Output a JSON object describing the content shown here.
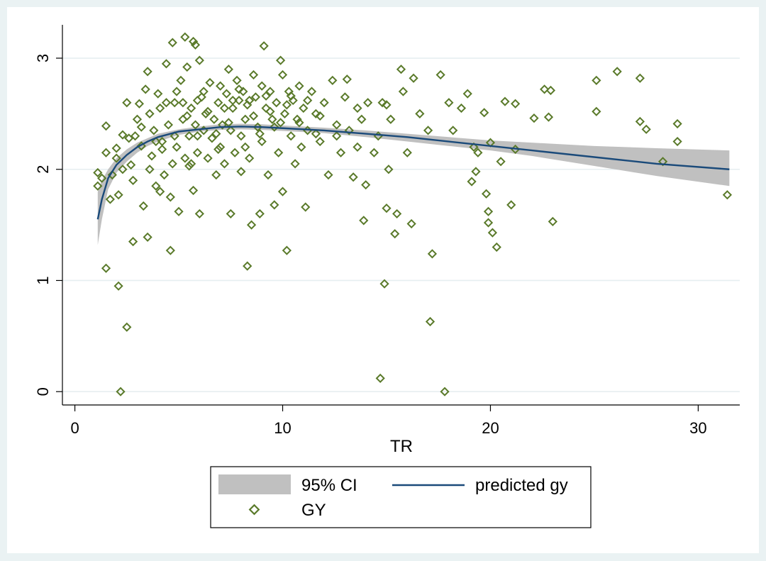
{
  "chart_data": {
    "type": "scatter",
    "xlabel": "TR",
    "ylabel": "",
    "xlim": [
      -0.6,
      32.0
    ],
    "ylim": [
      -0.12,
      3.3
    ],
    "xticks": [
      {
        "value": 0,
        "label": "0"
      },
      {
        "value": 10,
        "label": "10"
      },
      {
        "value": 20,
        "label": "20"
      },
      {
        "value": 30,
        "label": "30"
      }
    ],
    "yticks": [
      {
        "value": 0,
        "label": "0"
      },
      {
        "value": 1,
        "label": "1"
      },
      {
        "value": 2,
        "label": "2"
      },
      {
        "value": 3,
        "label": "3"
      }
    ],
    "grid": "horizontal",
    "legend": {
      "position": "bottom",
      "entries": [
        {
          "key": "ci",
          "label": "95% CI"
        },
        {
          "key": "fit",
          "label": "predicted gy"
        },
        {
          "key": "gy",
          "label": "GY"
        }
      ]
    },
    "colors": {
      "background": "#eaf2f3",
      "plot": "#ffffff",
      "marker": "#5a7a2a",
      "line": "#1a4a7a",
      "ci": "#c0c0c0",
      "grid": "#e6eef0"
    },
    "series": [
      {
        "name": "predicted gy",
        "kind": "line",
        "points": [
          [
            1.1,
            1.55
          ],
          [
            1.3,
            1.73
          ],
          [
            1.6,
            1.92
          ],
          [
            2,
            2.04
          ],
          [
            2.5,
            2.13
          ],
          [
            3,
            2.2
          ],
          [
            3.5,
            2.25
          ],
          [
            4,
            2.29
          ],
          [
            5,
            2.34
          ],
          [
            6,
            2.36
          ],
          [
            7,
            2.38
          ],
          [
            8,
            2.385
          ],
          [
            9,
            2.38
          ],
          [
            10,
            2.37
          ],
          [
            12,
            2.35
          ],
          [
            14,
            2.32
          ],
          [
            16,
            2.29
          ],
          [
            18,
            2.25
          ],
          [
            20,
            2.21
          ],
          [
            22,
            2.17
          ],
          [
            25,
            2.11
          ],
          [
            28,
            2.05
          ],
          [
            31.5,
            2.0
          ]
        ]
      },
      {
        "name": "95% CI",
        "kind": "band",
        "upper": [
          [
            1.1,
            1.8
          ],
          [
            1.3,
            1.9
          ],
          [
            1.6,
            2.0
          ],
          [
            2,
            2.1
          ],
          [
            2.5,
            2.18
          ],
          [
            3,
            2.24
          ],
          [
            3.5,
            2.28
          ],
          [
            4,
            2.32
          ],
          [
            5,
            2.36
          ],
          [
            6,
            2.385
          ],
          [
            7,
            2.405
          ],
          [
            8,
            2.41
          ],
          [
            9,
            2.405
          ],
          [
            10,
            2.395
          ],
          [
            12,
            2.375
          ],
          [
            14,
            2.35
          ],
          [
            16,
            2.32
          ],
          [
            18,
            2.29
          ],
          [
            20,
            2.26
          ],
          [
            22,
            2.24
          ],
          [
            25,
            2.21
          ],
          [
            28,
            2.19
          ],
          [
            31.5,
            2.17
          ]
        ],
        "lower": [
          [
            1.1,
            1.32
          ],
          [
            1.3,
            1.55
          ],
          [
            1.6,
            1.82
          ],
          [
            2,
            1.97
          ],
          [
            2.5,
            2.07
          ],
          [
            3,
            2.15
          ],
          [
            3.5,
            2.21
          ],
          [
            4,
            2.25
          ],
          [
            5,
            2.31
          ],
          [
            6,
            2.34
          ],
          [
            7,
            2.355
          ],
          [
            8,
            2.36
          ],
          [
            9,
            2.355
          ],
          [
            10,
            2.345
          ],
          [
            12,
            2.325
          ],
          [
            14,
            2.29
          ],
          [
            16,
            2.25
          ],
          [
            18,
            2.21
          ],
          [
            20,
            2.17
          ],
          [
            22,
            2.12
          ],
          [
            25,
            2.03
          ],
          [
            28,
            1.94
          ],
          [
            31.5,
            1.85
          ]
        ]
      },
      {
        "name": "GY",
        "kind": "scatter",
        "points": [
          [
            1.1,
            1.97
          ],
          [
            1.1,
            1.85
          ],
          [
            1.3,
            1.92
          ],
          [
            1.5,
            2.39
          ],
          [
            1.5,
            1.11
          ],
          [
            1.5,
            2.15
          ],
          [
            1.7,
            1.73
          ],
          [
            1.8,
            1.95
          ],
          [
            2,
            2.19
          ],
          [
            2.1,
            0.95
          ],
          [
            2.1,
            1.77
          ],
          [
            2.2,
            0.0
          ],
          [
            2.3,
            2.31
          ],
          [
            2.3,
            2.0
          ],
          [
            2.5,
            0.58
          ],
          [
            2.5,
            2.6
          ],
          [
            2.7,
            2.04
          ],
          [
            2.8,
            1.35
          ],
          [
            2.8,
            1.9
          ],
          [
            2.9,
            2.3
          ],
          [
            3.0,
            2.45
          ],
          [
            3.1,
            2.59
          ],
          [
            3.2,
            2.21
          ],
          [
            3.3,
            1.67
          ],
          [
            3.4,
            2.72
          ],
          [
            3.5,
            2.88
          ],
          [
            3.5,
            1.39
          ],
          [
            3.6,
            2.0
          ],
          [
            3.7,
            2.12
          ],
          [
            3.8,
            2.35
          ],
          [
            3.9,
            1.85
          ],
          [
            4.0,
            2.68
          ],
          [
            4.1,
            2.55
          ],
          [
            4.1,
            1.8
          ],
          [
            4.2,
            2.25
          ],
          [
            4.3,
            1.95
          ],
          [
            4.4,
            2.95
          ],
          [
            4.5,
            2.4
          ],
          [
            4.6,
            1.75
          ],
          [
            4.6,
            1.27
          ],
          [
            4.7,
            2.05
          ],
          [
            4.7,
            3.14
          ],
          [
            4.8,
            2.6
          ],
          [
            4.9,
            2.2
          ],
          [
            5.0,
            1.62
          ],
          [
            5.1,
            2.8
          ],
          [
            5.2,
            2.45
          ],
          [
            5.3,
            3.19
          ],
          [
            5.3,
            2.1
          ],
          [
            5.4,
            2.92
          ],
          [
            5.5,
            2.3
          ],
          [
            5.5,
            2.03
          ],
          [
            5.6,
            2.55
          ],
          [
            5.7,
            1.81
          ],
          [
            5.7,
            3.15
          ],
          [
            5.8,
            3.12
          ],
          [
            5.8,
            2.4
          ],
          [
            5.9,
            2.15
          ],
          [
            6.0,
            2.98
          ],
          [
            6.0,
            1.6
          ],
          [
            6.1,
            2.65
          ],
          [
            6.2,
            2.35
          ],
          [
            6.3,
            2.5
          ],
          [
            6.4,
            2.1
          ],
          [
            6.5,
            2.78
          ],
          [
            6.6,
            2.28
          ],
          [
            6.7,
            2.45
          ],
          [
            6.8,
            1.95
          ],
          [
            6.9,
            2.6
          ],
          [
            7.0,
            2.75
          ],
          [
            7.0,
            2.2
          ],
          [
            7.1,
            2.4
          ],
          [
            7.2,
            2.05
          ],
          [
            7.3,
            2.68
          ],
          [
            7.4,
            2.9
          ],
          [
            7.5,
            1.6
          ],
          [
            7.5,
            2.35
          ],
          [
            7.6,
            2.55
          ],
          [
            7.7,
            2.15
          ],
          [
            7.8,
            2.8
          ],
          [
            7.9,
            2.62
          ],
          [
            8.0,
            2.3
          ],
          [
            8.0,
            1.98
          ],
          [
            8.1,
            2.7
          ],
          [
            8.2,
            2.45
          ],
          [
            8.3,
            1.13
          ],
          [
            8.3,
            2.58
          ],
          [
            8.4,
            2.1
          ],
          [
            8.5,
            1.5
          ],
          [
            8.6,
            2.85
          ],
          [
            8.7,
            2.65
          ],
          [
            8.8,
            2.38
          ],
          [
            8.9,
            1.6
          ],
          [
            9.0,
            2.75
          ],
          [
            9.0,
            2.25
          ],
          [
            9.1,
            3.11
          ],
          [
            9.2,
            2.55
          ],
          [
            9.3,
            1.95
          ],
          [
            9.4,
            2.7
          ],
          [
            9.5,
            2.45
          ],
          [
            9.6,
            1.68
          ],
          [
            9.7,
            2.6
          ],
          [
            9.8,
            2.15
          ],
          [
            9.9,
            2.98
          ],
          [
            10.0,
            2.85
          ],
          [
            10.0,
            1.8
          ],
          [
            10.1,
            2.5
          ],
          [
            10.2,
            1.27
          ],
          [
            10.3,
            2.7
          ],
          [
            10.4,
            2.3
          ],
          [
            10.5,
            2.62
          ],
          [
            10.6,
            2.05
          ],
          [
            10.7,
            2.45
          ],
          [
            10.8,
            2.75
          ],
          [
            10.9,
            2.2
          ],
          [
            11.0,
            2.55
          ],
          [
            11.1,
            1.66
          ],
          [
            11.2,
            2.35
          ],
          [
            11.4,
            2.7
          ],
          [
            11.6,
            2.5
          ],
          [
            11.8,
            2.25
          ],
          [
            12.0,
            2.6
          ],
          [
            12.2,
            1.95
          ],
          [
            12.4,
            2.8
          ],
          [
            12.6,
            2.4
          ],
          [
            12.8,
            2.15
          ],
          [
            13.0,
            2.65
          ],
          [
            13.1,
            2.81
          ],
          [
            13.2,
            2.35
          ],
          [
            13.4,
            1.93
          ],
          [
            13.6,
            2.55
          ],
          [
            13.8,
            2.45
          ],
          [
            13.9,
            1.54
          ],
          [
            14.0,
            1.86
          ],
          [
            14.1,
            2.6
          ],
          [
            14.4,
            2.15
          ],
          [
            14.7,
            0.12
          ],
          [
            14.8,
            2.6
          ],
          [
            14.9,
            0.97
          ],
          [
            15.0,
            1.65
          ],
          [
            15.1,
            2.0
          ],
          [
            15.2,
            2.45
          ],
          [
            15.4,
            1.42
          ],
          [
            15.5,
            1.6
          ],
          [
            15.7,
            2.9
          ],
          [
            15.8,
            2.7
          ],
          [
            16.0,
            2.15
          ],
          [
            16.2,
            1.51
          ],
          [
            16.3,
            2.82
          ],
          [
            16.6,
            2.5
          ],
          [
            17.0,
            2.35
          ],
          [
            17.1,
            0.63
          ],
          [
            17.2,
            1.24
          ],
          [
            17.6,
            2.85
          ],
          [
            17.8,
            0.0
          ],
          [
            18.0,
            2.6
          ],
          [
            18.2,
            2.35
          ],
          [
            18.6,
            2.55
          ],
          [
            18.9,
            2.68
          ],
          [
            19.1,
            1.89
          ],
          [
            19.2,
            2.2
          ],
          [
            19.3,
            1.98
          ],
          [
            19.4,
            2.15
          ],
          [
            19.7,
            2.51
          ],
          [
            19.8,
            1.78
          ],
          [
            19.9,
            1.52
          ],
          [
            19.9,
            1.62
          ],
          [
            20.0,
            2.24
          ],
          [
            20.1,
            1.43
          ],
          [
            20.3,
            1.3
          ],
          [
            20.5,
            2.07
          ],
          [
            20.7,
            2.61
          ],
          [
            21.0,
            1.68
          ],
          [
            21.2,
            2.59
          ],
          [
            21.2,
            2.18
          ],
          [
            22.1,
            2.46
          ],
          [
            22.6,
            2.72
          ],
          [
            22.8,
            2.47
          ],
          [
            22.9,
            2.71
          ],
          [
            23.0,
            1.53
          ],
          [
            25.1,
            2.8
          ],
          [
            25.1,
            2.52
          ],
          [
            26.1,
            2.88
          ],
          [
            27.2,
            2.43
          ],
          [
            27.2,
            2.82
          ],
          [
            27.5,
            2.36
          ],
          [
            28.3,
            2.07
          ],
          [
            29.0,
            2.25
          ],
          [
            29.0,
            2.41
          ],
          [
            31.4,
            1.77
          ],
          [
            4.2,
            2.18
          ],
          [
            4.8,
            2.3
          ],
          [
            5.2,
            2.6
          ],
          [
            5.6,
            2.05
          ],
          [
            6.2,
            2.7
          ],
          [
            6.8,
            2.32
          ],
          [
            7.2,
            2.55
          ],
          [
            7.6,
            2.62
          ],
          [
            8.2,
            2.2
          ],
          [
            8.6,
            2.48
          ],
          [
            9.2,
            2.66
          ],
          [
            9.6,
            2.38
          ],
          [
            10.2,
            2.58
          ],
          [
            10.8,
            2.42
          ],
          [
            11.2,
            2.62
          ],
          [
            11.8,
            2.48
          ],
          [
            3.6,
            2.5
          ],
          [
            3.2,
            2.38
          ],
          [
            2.6,
            2.28
          ],
          [
            2.0,
            2.1
          ],
          [
            5.4,
            2.48
          ],
          [
            6.4,
            2.52
          ],
          [
            7.4,
            2.42
          ],
          [
            8.4,
            2.62
          ],
          [
            9.4,
            2.52
          ],
          [
            10.4,
            2.66
          ],
          [
            12.6,
            2.3
          ],
          [
            13.6,
            2.2
          ],
          [
            14.6,
            2.3
          ],
          [
            15.0,
            2.58
          ],
          [
            5.9,
            2.62
          ],
          [
            6.9,
            2.18
          ],
          [
            7.9,
            2.72
          ],
          [
            8.9,
            2.32
          ],
          [
            9.9,
            2.42
          ],
          [
            4.4,
            2.6
          ],
          [
            3.9,
            2.25
          ],
          [
            4.9,
            2.7
          ],
          [
            5.9,
            2.3
          ],
          [
            11.6,
            2.32
          ]
        ]
      }
    ]
  }
}
